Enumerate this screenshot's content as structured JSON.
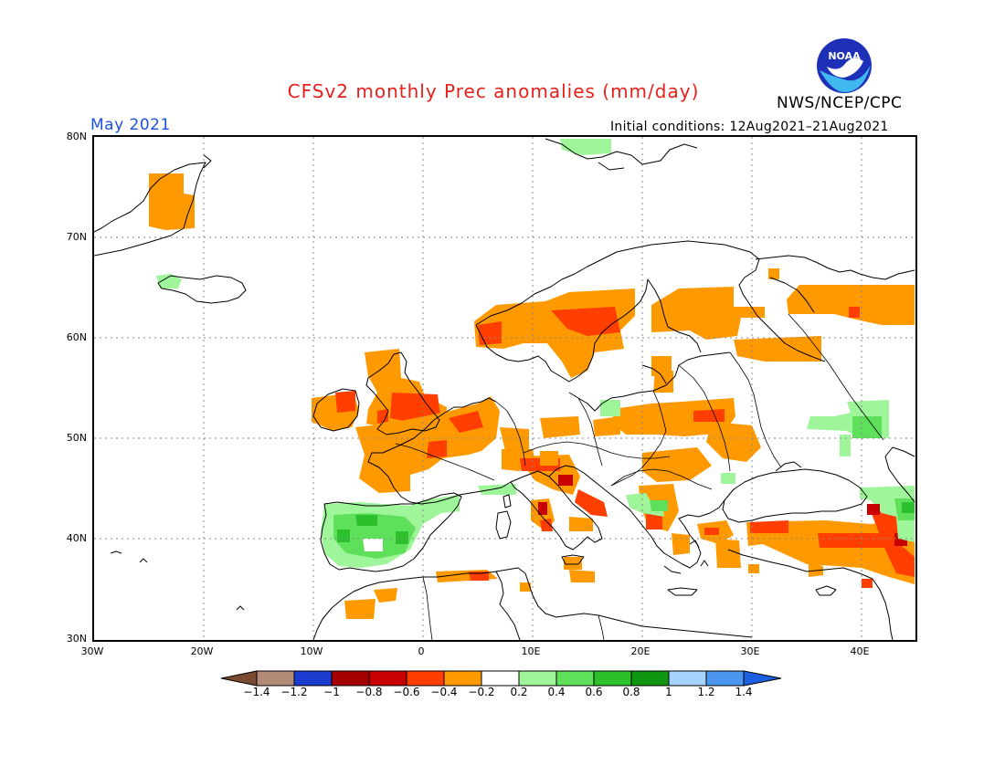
{
  "header": {
    "title": "CFSv2 monthly Prec anomalies (mm/day)",
    "agency": "NWS/NCEP/CPC",
    "month": "May 2021",
    "initial_conditions": "Initial conditions: 12Aug2021–21Aug2021",
    "logo_text": "NOAA"
  },
  "map": {
    "region": "Europe",
    "lon_range": [
      -30,
      45
    ],
    "lat_range": [
      30,
      80
    ],
    "lat_labels": [
      "80N",
      "70N",
      "60N",
      "50N",
      "40N",
      "30N"
    ],
    "lon_labels": [
      "30W",
      "20W",
      "10W",
      "0",
      "10E",
      "20E",
      "30E",
      "40E"
    ]
  },
  "colorbar": {
    "labels": [
      "−1.4",
      "−1.2",
      "−1",
      "−0.8",
      "−0.6",
      "−0.4",
      "−0.2",
      "0.2",
      "0.4",
      "0.6",
      "0.8",
      "1",
      "1.2",
      "1.4"
    ],
    "colors": [
      "#7a4a33",
      "#b48a78",
      "#1a3ccf",
      "#a50000",
      "#c80000",
      "#ff3e00",
      "#ff9900",
      "#ffffff",
      "#9ff59a",
      "#5fe05a",
      "#2cc02c",
      "#119611",
      "#a5d4ff",
      "#4b96ee",
      "#1c5fe0"
    ]
  },
  "colors": {
    "title": "#e8201c",
    "month": "#1d4fe0",
    "orange": "#ff9900",
    "red_orange": "#ff3e00",
    "red": "#c80000",
    "light_green": "#9ff59a",
    "green": "#5fe05a",
    "dark_green": "#2cc02c"
  }
}
